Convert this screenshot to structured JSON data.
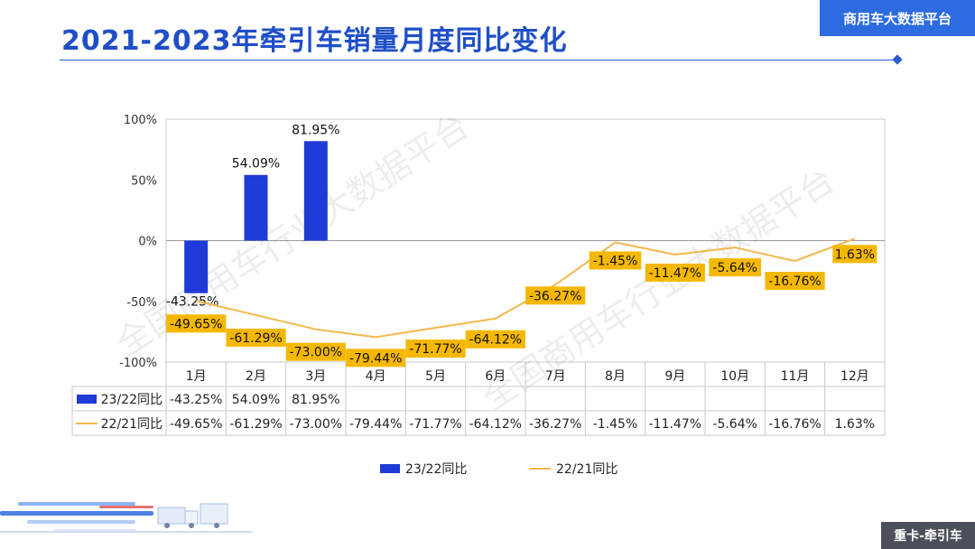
{
  "header": {
    "title": "2021-2023年牵引车销量月度同比变化",
    "brand": "商用车大数据平台"
  },
  "footer": {
    "tag": "重卡-牵引车"
  },
  "watermark": "全国商用车行业大数据平台",
  "colors": {
    "bar": "#1f3ad6",
    "line": "#f3b84d",
    "label_bg": "#f5b800",
    "title": "#1f4fc8"
  },
  "chart_data": {
    "type": "bar+line",
    "categories": [
      "1月",
      "2月",
      "3月",
      "4月",
      "5月",
      "6月",
      "7月",
      "8月",
      "9月",
      "10月",
      "11月",
      "12月"
    ],
    "series": [
      {
        "name": "23/22同比",
        "type": "bar",
        "values": [
          -43.25,
          54.09,
          81.95,
          null,
          null,
          null,
          null,
          null,
          null,
          null,
          null,
          null
        ],
        "labels": [
          "-43.25%",
          "54.09%",
          "81.95%",
          "",
          "",
          "",
          "",
          "",
          "",
          "",
          "",
          ""
        ]
      },
      {
        "name": "22/21同比",
        "type": "line",
        "values": [
          -49.65,
          -61.29,
          -73.0,
          -79.44,
          -71.77,
          -64.12,
          -36.27,
          -1.45,
          -11.47,
          -5.64,
          -16.76,
          1.63
        ],
        "labels": [
          "-49.65%",
          "-61.29%",
          "-73.00%",
          "-79.44%",
          "-71.77%",
          "-64.12%",
          "-36.27%",
          "-1.45%",
          "-11.47%",
          "-5.64%",
          "-16.76%",
          "1.63%"
        ]
      }
    ],
    "yaxis": {
      "min": -100,
      "max": 100,
      "ticks": [
        100,
        50,
        0,
        -50,
        -100
      ],
      "tick_labels": [
        "100%",
        "50%",
        "0%",
        "-50%",
        "-100%"
      ]
    },
    "legend": {
      "position": "bottom",
      "items": [
        "23/22同比",
        "22/21同比"
      ]
    },
    "has_data_table": true
  }
}
